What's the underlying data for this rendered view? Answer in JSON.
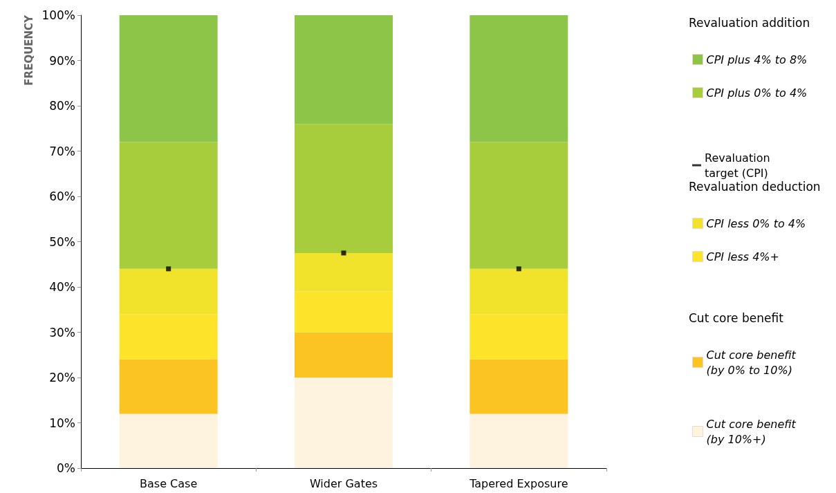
{
  "chart_data": {
    "type": "bar",
    "stacked": true,
    "ylabel": "FREQUENCY",
    "categories": [
      "Base Case",
      "Wider Gates",
      "Tapered Exposure"
    ],
    "series": [
      {
        "name": "Cut core benefit (by 10%+)",
        "color": "#fdf3df",
        "values": [
          12,
          20,
          12
        ]
      },
      {
        "name": "Cut core benefit (by 0% to 10%)",
        "color": "#fcc423",
        "values": [
          12,
          10,
          12
        ]
      },
      {
        "name": "CPI less 4%+",
        "color": "#fde42a",
        "values": [
          10,
          9,
          10
        ]
      },
      {
        "name": "CPI less 0% to 4%",
        "color": "#f1e22c",
        "values": [
          10,
          8.5,
          10
        ]
      },
      {
        "name": "CPI plus 0% to 4%",
        "color": "#a8cd3c",
        "values": [
          28,
          28.5,
          28
        ]
      },
      {
        "name": "CPI plus 4% to 8%",
        "color": "#8dc549",
        "values": [
          28,
          24,
          28
        ]
      },
      {
        "name": "Revaluation target (CPI)",
        "type": "scatter",
        "marker": "square",
        "color": "#000000",
        "values": [
          44,
          47.5,
          44
        ]
      }
    ],
    "annotations": [
      "Revaluation addition",
      "Revaluation deduction",
      "Cut core benefit"
    ],
    "ylim": [
      0,
      100
    ],
    "yticks": [
      {
        "value": 0,
        "label": "0%"
      },
      {
        "value": 10,
        "label": "10%"
      },
      {
        "value": 20,
        "label": "20%"
      },
      {
        "value": 30,
        "label": "30%"
      },
      {
        "value": 40,
        "label": "40%"
      },
      {
        "value": 50,
        "label": "50%"
      },
      {
        "value": 60,
        "label": "60%"
      },
      {
        "value": 70,
        "label": "70%"
      },
      {
        "value": 80,
        "label": "80%"
      },
      {
        "value": 90,
        "label": "90%"
      },
      {
        "value": 100,
        "label": "100%"
      }
    ],
    "grid": false,
    "legend": "right"
  }
}
